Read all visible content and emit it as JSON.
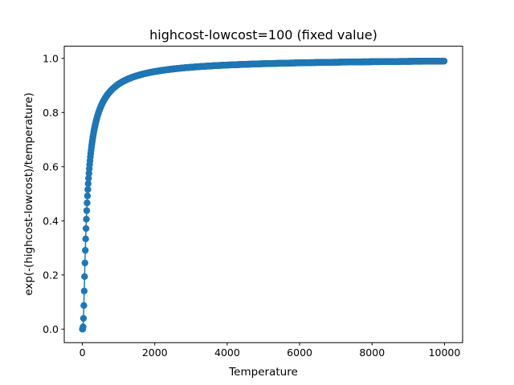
{
  "chart_data": {
    "type": "line",
    "title": "highcost-lowcost=100 (fixed value)",
    "xlabel": "Temperature",
    "ylabel": "exp(-(highcost-lowcost)/temperature)",
    "xlim": [
      -500,
      10500
    ],
    "ylim": [
      -0.05,
      1.045
    ],
    "xticks": [
      "0",
      "2000",
      "4000",
      "6000",
      "8000",
      "10000"
    ],
    "yticks": [
      "0.0",
      "0.2",
      "0.4",
      "0.6",
      "0.8",
      "1.0"
    ],
    "grid": false,
    "legend": "none",
    "series": [
      {
        "color": "#1f77b4",
        "marker": "circle",
        "function": "exp(-100/x)",
        "x_start": 1,
        "x_end": 10000,
        "x_step": 10
      }
    ]
  }
}
